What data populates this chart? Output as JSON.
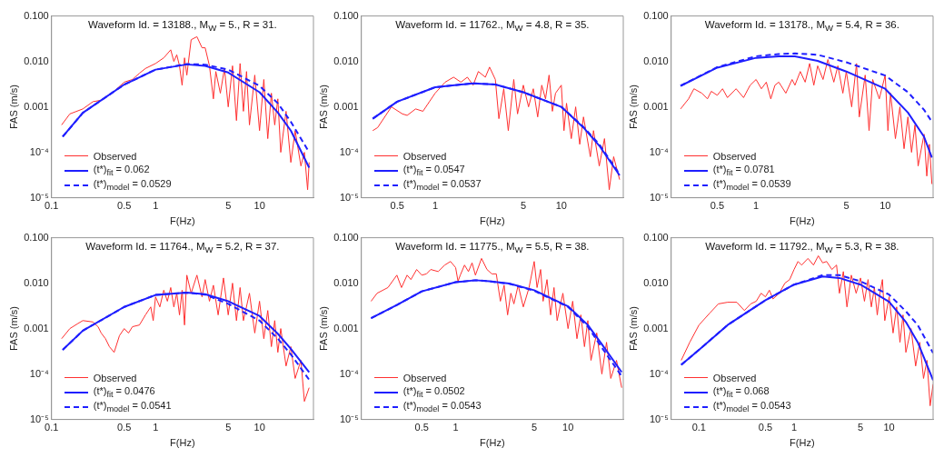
{
  "chart_data": [
    {
      "type": "line",
      "title": "Waveform Id. = 13188., M$_{W}$ = 5., R = 31.",
      "xlabel": "F(Hz)",
      "ylabel": "FAS (m/s)",
      "log": "xy",
      "legend": "bottom left",
      "marker": "none",
      "xlim": [
        0.1,
        33
      ],
      "ylim": [
        1e-05,
        0.1
      ],
      "xticks": [
        0.1,
        0.5,
        1,
        5,
        10
      ],
      "yticks": [
        {
          "value": 1e-05,
          "label": "10⁻⁵"
        },
        {
          "value": 0.0001,
          "label": "10⁻⁴"
        },
        {
          "value": 0.001,
          "label": "0.001"
        },
        {
          "value": 0.01,
          "label": "0.010"
        },
        {
          "value": 0.1,
          "label": "0.100"
        }
      ],
      "series": [
        {
          "name": "Observed",
          "color": "#ff3030",
          "line_style": "solid",
          "x": [
            0.125,
            0.15,
            0.2,
            0.25,
            0.3,
            0.4,
            0.5,
            0.6,
            0.7,
            0.8,
            1,
            1.2,
            1.4,
            1.5,
            1.6,
            1.7,
            1.8,
            1.9,
            2,
            2.2,
            2.5,
            2.8,
            3,
            3.3,
            3.6,
            3.8,
            4.2,
            4.6,
            5,
            5.5,
            6,
            6.5,
            7,
            7.5,
            8,
            9,
            10,
            11,
            12,
            13,
            14,
            15,
            16,
            18,
            20,
            22,
            25,
            27,
            29,
            30
          ],
          "values": [
            0.0004,
            0.0007,
            0.0009,
            0.0013,
            0.0014,
            0.0022,
            0.0035,
            0.004,
            0.0055,
            0.007,
            0.009,
            0.012,
            0.018,
            0.01,
            0.014,
            0.008,
            0.003,
            0.012,
            0.005,
            0.03,
            0.035,
            0.02,
            0.02,
            0.008,
            0.0015,
            0.006,
            0.002,
            0.007,
            0.001,
            0.008,
            0.0005,
            0.009,
            0.0008,
            0.006,
            0.0004,
            0.005,
            0.0003,
            0.004,
            0.0002,
            0.002,
            0.0004,
            0.0015,
            0.0001,
            0.0008,
            6e-05,
            0.0003,
            5e-05,
            0.0001,
            1.5e-05,
            6e-05
          ]
        },
        {
          "name": "(t*)$_{fit}$ = 0.062",
          "color": "#1f1fff",
          "line_style": "solid",
          "x": [
            0.128,
            0.2,
            0.5,
            1,
            2,
            3,
            5,
            10,
            15,
            20,
            30
          ],
          "values": [
            0.00022,
            0.00074,
            0.0031,
            0.0066,
            0.0086,
            0.008,
            0.0057,
            0.0021,
            0.00075,
            0.0003,
            4.6e-05
          ]
        },
        {
          "name": "(t*)$_{model}$ = 0.0529",
          "color": "#1f1fff",
          "line_style": "dashed",
          "x": [
            0.128,
            0.2,
            0.5,
            1,
            2,
            3,
            5,
            10,
            15,
            20,
            30
          ],
          "values": [
            0.00022,
            0.00074,
            0.0031,
            0.0066,
            0.0088,
            0.0085,
            0.0066,
            0.0029,
            0.0012,
            0.00047,
            0.0001
          ]
        }
      ]
    },
    {
      "type": "line",
      "title": "Waveform Id. = 11762., M$_{W}$ = 4.8, R = 35.",
      "xlabel": "F(Hz)",
      "ylabel": "FAS (m/s)",
      "log": "xy",
      "legend": "bottom left",
      "marker": "none",
      "xlim": [
        0.26,
        31
      ],
      "ylim": [
        1e-05,
        0.1
      ],
      "xticks": [
        0.5,
        1,
        5,
        10
      ],
      "yticks": [
        {
          "value": 1e-05,
          "label": "10⁻⁵"
        },
        {
          "value": 0.0001,
          "label": "10⁻⁴"
        },
        {
          "value": 0.001,
          "label": "0.001"
        },
        {
          "value": 0.01,
          "label": "0.010"
        },
        {
          "value": 0.1,
          "label": "0.100"
        }
      ],
      "series": [
        {
          "name": "Observed",
          "color": "#ff3030",
          "line_style": "solid",
          "x": [
            0.32,
            0.35,
            0.45,
            0.55,
            0.6,
            0.7,
            0.8,
            0.9,
            1,
            1.2,
            1.4,
            1.6,
            1.8,
            2,
            2.2,
            2.5,
            2.7,
            3,
            3.2,
            3.5,
            3.8,
            4.2,
            4.5,
            5,
            5.5,
            6,
            6.5,
            7,
            7.5,
            8,
            8.5,
            9,
            10,
            10.5,
            11,
            12,
            13,
            14,
            15,
            17,
            18,
            20,
            22,
            24,
            26,
            29
          ],
          "values": [
            0.0003,
            0.00035,
            0.001,
            0.0007,
            0.00065,
            0.0009,
            0.0008,
            0.0013,
            0.002,
            0.0035,
            0.0045,
            0.0035,
            0.0045,
            0.003,
            0.006,
            0.0045,
            0.0075,
            0.004,
            0.00055,
            0.0025,
            0.0003,
            0.004,
            0.0007,
            0.003,
            0.001,
            0.0025,
            0.0006,
            0.003,
            0.0015,
            0.005,
            0.0008,
            0.002,
            0.003,
            0.0003,
            0.0012,
            0.0002,
            0.001,
            0.00015,
            0.0006,
            8e-05,
            0.0003,
            5e-05,
            0.0002,
            1.5e-05,
            8e-05,
            2.5e-05
          ]
        },
        {
          "name": "(t*)$_{fit}$ = 0.0547",
          "color": "#1f1fff",
          "line_style": "solid",
          "x": [
            0.32,
            0.5,
            1,
            2,
            3,
            5,
            10,
            15,
            20,
            29
          ],
          "values": [
            0.00055,
            0.0013,
            0.0027,
            0.0033,
            0.0031,
            0.0021,
            0.001,
            0.00035,
            0.00014,
            3.1e-05
          ]
        },
        {
          "name": "(t*)$_{model}$ = 0.0537",
          "color": "#1f1fff",
          "line_style": "dashed",
          "x": [
            0.32,
            0.5,
            1,
            2,
            3,
            5,
            10,
            15,
            20,
            29
          ],
          "values": [
            0.00055,
            0.0013,
            0.0027,
            0.0033,
            0.0031,
            0.0021,
            0.001,
            0.00036,
            0.00015,
            3.3e-05
          ]
        }
      ]
    },
    {
      "type": "line",
      "title": "Waveform Id. = 13178., M$_{W}$ = 5.4, R = 36.",
      "xlabel": "F(Hz)",
      "ylabel": "FAS (m/s)",
      "log": "xy",
      "legend": "bottom left",
      "marker": "none",
      "xlim": [
        0.22,
        23.5
      ],
      "ylim": [
        1e-05,
        0.1
      ],
      "xticks": [
        0.5,
        1,
        5,
        10
      ],
      "yticks": [
        {
          "value": 1e-05,
          "label": "10⁻⁵"
        },
        {
          "value": 0.0001,
          "label": "10⁻⁴"
        },
        {
          "value": 0.001,
          "label": "0.001"
        },
        {
          "value": 0.01,
          "label": "0.010"
        },
        {
          "value": 0.1,
          "label": "0.100"
        }
      ],
      "series": [
        {
          "name": "Observed",
          "color": "#ff3030",
          "line_style": "solid",
          "x": [
            0.26,
            0.3,
            0.33,
            0.38,
            0.42,
            0.45,
            0.5,
            0.55,
            0.6,
            0.7,
            0.8,
            0.9,
            1,
            1.1,
            1.2,
            1.3,
            1.4,
            1.5,
            1.7,
            1.9,
            2,
            2.2,
            2.4,
            2.6,
            2.8,
            3,
            3.3,
            3.6,
            4,
            4.3,
            4.7,
            5,
            5.5,
            6,
            6.3,
            7,
            7.5,
            8,
            9,
            10,
            10.5,
            11,
            12,
            13,
            14,
            15,
            16,
            17,
            18,
            20,
            21,
            22,
            23
          ],
          "values": [
            0.0009,
            0.0015,
            0.0025,
            0.002,
            0.0015,
            0.0022,
            0.0018,
            0.0025,
            0.0016,
            0.0025,
            0.0016,
            0.003,
            0.004,
            0.0025,
            0.0035,
            0.0015,
            0.003,
            0.0035,
            0.002,
            0.004,
            0.003,
            0.006,
            0.0035,
            0.009,
            0.003,
            0.008,
            0.004,
            0.011,
            0.0035,
            0.008,
            0.002,
            0.006,
            0.001,
            0.009,
            0.0006,
            0.005,
            0.0003,
            0.004,
            0.0015,
            0.005,
            0.0003,
            0.002,
            0.0002,
            0.001,
            0.00012,
            0.0006,
            0.0001,
            0.0004,
            5e-05,
            0.00025,
            3e-05,
            0.00015,
            2e-05
          ]
        },
        {
          "name": "(t*)$_{fit}$ = 0.0781",
          "color": "#1f1fff",
          "line_style": "solid",
          "x": [
            0.26,
            0.5,
            1,
            1.5,
            2,
            3,
            5,
            10,
            15,
            20,
            23
          ],
          "values": [
            0.0029,
            0.0073,
            0.012,
            0.013,
            0.013,
            0.0103,
            0.006,
            0.0025,
            0.00075,
            0.00022,
            7.7e-05
          ]
        },
        {
          "name": "(t*)$_{model}$ = 0.0539",
          "color": "#1f1fff",
          "line_style": "dashed",
          "x": [
            0.26,
            0.5,
            1,
            1.5,
            2,
            3,
            5,
            10,
            15,
            20,
            23
          ],
          "values": [
            0.0029,
            0.0075,
            0.013,
            0.0145,
            0.015,
            0.014,
            0.0096,
            0.0049,
            0.0021,
            0.00086,
            0.00047
          ]
        }
      ]
    },
    {
      "type": "line",
      "title": "Waveform Id. = 11764., M$_{W}$ = 5.2, R = 37.",
      "xlabel": "F(Hz)",
      "ylabel": "FAS (m/s)",
      "log": "xy",
      "legend": "bottom left",
      "marker": "none",
      "xlim": [
        0.1,
        33
      ],
      "ylim": [
        1e-05,
        0.1
      ],
      "xticks": [
        0.1,
        0.5,
        1,
        5,
        10
      ],
      "yticks": [
        {
          "value": 1e-05,
          "label": "10⁻⁵"
        },
        {
          "value": 0.0001,
          "label": "10⁻⁴"
        },
        {
          "value": 0.001,
          "label": "0.001"
        },
        {
          "value": 0.01,
          "label": "0.010"
        },
        {
          "value": 0.1,
          "label": "0.100"
        }
      ],
      "series": [
        {
          "name": "Observed",
          "color": "#ff3030",
          "line_style": "solid",
          "x": [
            0.125,
            0.15,
            0.18,
            0.2,
            0.25,
            0.28,
            0.3,
            0.33,
            0.36,
            0.4,
            0.45,
            0.5,
            0.55,
            0.6,
            0.7,
            0.8,
            0.9,
            0.95,
            1,
            1.1,
            1.2,
            1.3,
            1.4,
            1.5,
            1.6,
            1.7,
            1.8,
            1.9,
            2,
            2.2,
            2.5,
            2.8,
            3,
            3.3,
            3.6,
            4,
            4.5,
            5,
            5.5,
            6,
            6.5,
            7,
            8,
            9,
            10,
            11,
            12,
            13,
            14,
            15,
            16,
            18,
            20,
            22,
            25,
            27,
            30
          ],
          "values": [
            0.0006,
            0.001,
            0.0013,
            0.0015,
            0.0014,
            0.0011,
            0.0008,
            0.0006,
            0.0004,
            0.0003,
            0.0007,
            0.001,
            0.0008,
            0.0011,
            0.0012,
            0.002,
            0.003,
            0.0015,
            0.005,
            0.003,
            0.007,
            0.004,
            0.008,
            0.003,
            0.006,
            0.002,
            0.007,
            0.0012,
            0.015,
            0.006,
            0.015,
            0.005,
            0.012,
            0.004,
            0.009,
            0.002,
            0.013,
            0.002,
            0.01,
            0.0015,
            0.008,
            0.0015,
            0.006,
            0.0008,
            0.004,
            0.0006,
            0.0025,
            0.0004,
            0.0015,
            0.0003,
            0.001,
            0.00015,
            0.0004,
            8e-05,
            0.0002,
            2.5e-05,
            5e-05
          ]
        },
        {
          "name": "(t*)$_{fit}$ = 0.0476",
          "color": "#1f1fff",
          "line_style": "solid",
          "x": [
            0.128,
            0.2,
            0.5,
            1,
            2,
            3,
            5,
            10,
            15,
            20,
            30
          ],
          "values": [
            0.00034,
            0.0009,
            0.003,
            0.0055,
            0.0062,
            0.0057,
            0.004,
            0.0019,
            0.00077,
            0.00036,
            0.00011
          ]
        },
        {
          "name": "(t*)$_{model}$ = 0.0541",
          "color": "#1f1fff",
          "line_style": "dashed",
          "x": [
            0.128,
            0.2,
            0.5,
            1,
            2,
            3,
            5,
            10,
            15,
            20,
            30
          ],
          "values": [
            0.00034,
            0.0009,
            0.003,
            0.0055,
            0.0062,
            0.0056,
            0.0035,
            0.0015,
            0.0006,
            0.00027,
            7.5e-05
          ]
        }
      ]
    },
    {
      "type": "line",
      "title": "Waveform Id. = 11775., M$_{W}$ = 5.5, R = 38.",
      "xlabel": "F(Hz)",
      "ylabel": "FAS (m/s)",
      "log": "xy",
      "legend": "bottom left",
      "marker": "none",
      "xlim": [
        0.145,
        31
      ],
      "ylim": [
        1e-05,
        0.1
      ],
      "xticks": [
        0.5,
        1,
        5,
        10
      ],
      "yticks": [
        {
          "value": 1e-05,
          "label": "10⁻⁵"
        },
        {
          "value": 0.0001,
          "label": "10⁻⁴"
        },
        {
          "value": 0.001,
          "label": "0.001"
        },
        {
          "value": 0.01,
          "label": "0.010"
        },
        {
          "value": 0.1,
          "label": "0.100"
        }
      ],
      "series": [
        {
          "name": "Observed",
          "color": "#ff3030",
          "line_style": "solid",
          "x": [
            0.177,
            0.2,
            0.25,
            0.3,
            0.33,
            0.37,
            0.4,
            0.45,
            0.5,
            0.55,
            0.6,
            0.7,
            0.8,
            0.9,
            1,
            1.05,
            1.1,
            1.2,
            1.3,
            1.4,
            1.5,
            1.7,
            1.9,
            2.1,
            2.3,
            2.5,
            2.7,
            2.9,
            3.1,
            3.3,
            3.6,
            4,
            4.5,
            5,
            5.3,
            5.7,
            6,
            6.5,
            7,
            7.5,
            8,
            9,
            10,
            11,
            12,
            13,
            14,
            15,
            16,
            18,
            20,
            22,
            24,
            27,
            30
          ],
          "values": [
            0.004,
            0.006,
            0.008,
            0.015,
            0.008,
            0.015,
            0.012,
            0.02,
            0.015,
            0.016,
            0.02,
            0.018,
            0.025,
            0.03,
            0.022,
            0.011,
            0.015,
            0.025,
            0.018,
            0.028,
            0.015,
            0.035,
            0.02,
            0.016,
            0.016,
            0.004,
            0.009,
            0.002,
            0.006,
            0.0035,
            0.009,
            0.003,
            0.008,
            0.03,
            0.008,
            0.02,
            0.004,
            0.012,
            0.002,
            0.008,
            0.0015,
            0.006,
            0.001,
            0.004,
            0.0006,
            0.002,
            0.0004,
            0.0015,
            0.0002,
            0.0008,
            0.0001,
            0.0005,
            8e-05,
            0.0002,
            5e-05
          ]
        },
        {
          "name": "(t*)$_{fit}$ = 0.0502",
          "color": "#1f1fff",
          "line_style": "solid",
          "x": [
            0.177,
            0.3,
            0.5,
            1,
            1.5,
            2,
            3,
            5,
            10,
            15,
            20,
            30
          ],
          "values": [
            0.0017,
            0.0033,
            0.0066,
            0.0105,
            0.0116,
            0.011,
            0.0098,
            0.007,
            0.0031,
            0.0012,
            0.00045,
            0.00011
          ]
        },
        {
          "name": "(t*)$_{model}$ = 0.0543",
          "color": "#1f1fff",
          "line_style": "dashed",
          "x": [
            0.177,
            0.3,
            0.5,
            1,
            1.5,
            2,
            3,
            5,
            10,
            15,
            20,
            30
          ],
          "values": [
            0.0017,
            0.0033,
            0.0066,
            0.0105,
            0.0116,
            0.011,
            0.0097,
            0.0068,
            0.003,
            0.0011,
            0.00038,
            9e-05
          ]
        }
      ]
    },
    {
      "type": "line",
      "title": "Waveform Id. = 11792., M$_{W}$ = 5.3, R = 38.",
      "xlabel": "F(Hz)",
      "ylabel": "FAS (m/s)",
      "log": "xy",
      "legend": "bottom left",
      "marker": "none",
      "xlim": [
        0.051,
        29
      ],
      "ylim": [
        1e-05,
        0.1
      ],
      "xticks": [
        0.1,
        0.5,
        1,
        5,
        10
      ],
      "yticks": [
        {
          "value": 1e-05,
          "label": "10⁻⁵"
        },
        {
          "value": 0.0001,
          "label": "10⁻⁴"
        },
        {
          "value": 0.001,
          "label": "0.001"
        },
        {
          "value": 0.01,
          "label": "0.010"
        },
        {
          "value": 0.1,
          "label": "0.100"
        }
      ],
      "series": [
        {
          "name": "Observed",
          "color": "#ff3030",
          "line_style": "solid",
          "x": [
            0.065,
            0.08,
            0.1,
            0.13,
            0.16,
            0.2,
            0.25,
            0.3,
            0.35,
            0.4,
            0.45,
            0.5,
            0.55,
            0.6,
            0.7,
            0.8,
            0.9,
            1,
            1.1,
            1.2,
            1.4,
            1.6,
            1.8,
            2,
            2.2,
            2.5,
            2.8,
            3,
            3.3,
            3.6,
            4,
            4.5,
            5,
            5.5,
            6,
            6.5,
            7,
            7.5,
            8,
            8.5,
            9,
            10,
            11,
            12,
            13,
            14,
            15,
            17,
            19,
            21,
            23,
            25,
            27,
            29
          ],
          "values": [
            0.0002,
            0.0005,
            0.0012,
            0.0022,
            0.0035,
            0.0038,
            0.0038,
            0.0025,
            0.0035,
            0.004,
            0.006,
            0.005,
            0.007,
            0.0045,
            0.006,
            0.01,
            0.012,
            0.02,
            0.03,
            0.025,
            0.035,
            0.025,
            0.04,
            0.028,
            0.03,
            0.02,
            0.025,
            0.006,
            0.018,
            0.003,
            0.015,
            0.006,
            0.013,
            0.004,
            0.012,
            0.003,
            0.008,
            0.002,
            0.006,
            0.012,
            0.0015,
            0.005,
            0.0008,
            0.003,
            0.0005,
            0.002,
            0.0003,
            0.001,
            0.00015,
            0.0005,
            8e-05,
            0.0002,
            2e-05,
            6e-05
          ]
        },
        {
          "name": "(t*)$_{fit}$ = 0.068",
          "color": "#1f1fff",
          "line_style": "solid",
          "x": [
            0.065,
            0.1,
            0.2,
            0.5,
            1,
            2,
            3,
            5,
            10,
            15,
            20,
            29
          ],
          "values": [
            0.00016,
            0.00034,
            0.0012,
            0.0042,
            0.0093,
            0.014,
            0.013,
            0.0093,
            0.0039,
            0.0014,
            0.0005,
            7.3e-05
          ]
        },
        {
          "name": "(t*)$_{model}$ = 0.0543",
          "color": "#1f1fff",
          "line_style": "dashed",
          "x": [
            0.065,
            0.1,
            0.2,
            0.5,
            1,
            2,
            3,
            5,
            10,
            15,
            20,
            29
          ],
          "values": [
            0.00016,
            0.00034,
            0.0012,
            0.0042,
            0.0093,
            0.015,
            0.015,
            0.011,
            0.0056,
            0.0024,
            0.0012,
            0.00029
          ]
        }
      ]
    }
  ]
}
